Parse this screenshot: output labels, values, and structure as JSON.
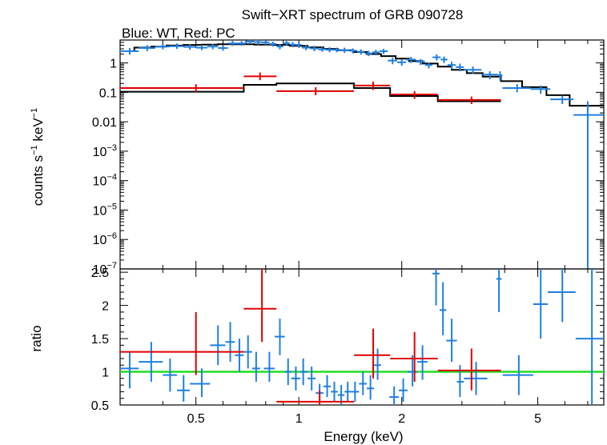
{
  "title": "Swift−XRT spectrum of GRB 090728",
  "subtitle": "Blue: WT, Red: PC",
  "colors": {
    "wt": "#1f7fe0",
    "pc": "#e00000",
    "model": "#000000",
    "unity": "#22dd22"
  },
  "chart_data": [
    {
      "type": "scatter",
      "panel": "spectrum",
      "ylabel_main": "counts s",
      "ylabel_sup1": "−1",
      "ylabel_mid": " keV",
      "ylabel_sup2": "−1",
      "xscale": "log",
      "yscale": "log",
      "xlim": [
        0.3,
        7.8
      ],
      "ylim": [
        1e-07,
        6
      ],
      "yticks": [
        {
          "v": 1,
          "b": "1",
          "e": ""
        },
        {
          "v": 0.1,
          "b": "0.1",
          "e": ""
        },
        {
          "v": 0.01,
          "b": "0.01",
          "e": ""
        },
        {
          "v": 0.001,
          "b": "10",
          "e": "−3"
        },
        {
          "v": 0.0001,
          "b": "10",
          "e": "−4"
        },
        {
          "v": 1e-05,
          "b": "10",
          "e": "−5"
        },
        {
          "v": 1e-06,
          "b": "10",
          "e": "−6"
        },
        {
          "v": 1e-07,
          "b": "10",
          "e": "−7"
        }
      ],
      "series": [
        {
          "key": "wt",
          "points": [
            [
              0.32,
              0.3,
              0.34,
              2.5,
              1.9,
              3.2
            ],
            [
              0.36,
              0.34,
              0.38,
              3.2,
              2.5,
              4.0
            ],
            [
              0.4,
              0.38,
              0.42,
              3.6,
              2.9,
              4.5
            ],
            [
              0.44,
              0.42,
              0.46,
              3.7,
              3.0,
              4.6
            ],
            [
              0.48,
              0.46,
              0.5,
              3.5,
              2.8,
              4.3
            ],
            [
              0.52,
              0.5,
              0.54,
              3.3,
              2.7,
              4.1
            ],
            [
              0.56,
              0.54,
              0.58,
              3.6,
              2.9,
              4.4
            ],
            [
              0.6,
              0.58,
              0.62,
              3.2,
              2.6,
              4.0
            ],
            [
              0.64,
              0.62,
              0.66,
              4.6,
              3.8,
              5.6
            ],
            [
              0.68,
              0.66,
              0.7,
              4.6,
              3.8,
              5.5
            ],
            [
              0.72,
              0.7,
              0.74,
              5.3,
              4.4,
              6.3
            ],
            [
              0.76,
              0.74,
              0.78,
              5.1,
              4.2,
              6.1
            ],
            [
              0.8,
              0.78,
              0.82,
              5.0,
              4.1,
              5.9
            ],
            [
              0.84,
              0.82,
              0.86,
              4.4,
              3.6,
              5.3
            ],
            [
              0.88,
              0.86,
              0.9,
              3.6,
              2.9,
              4.4
            ],
            [
              0.92,
              0.9,
              0.94,
              4.7,
              3.9,
              5.6
            ],
            [
              0.96,
              0.94,
              0.98,
              4.2,
              3.4,
              5.1
            ],
            [
              1.0,
              0.98,
              1.02,
              4.1,
              3.4,
              5.0
            ],
            [
              1.05,
              1.02,
              1.08,
              3.3,
              2.7,
              4.0
            ],
            [
              1.11,
              1.08,
              1.14,
              3.1,
              2.5,
              3.8
            ],
            [
              1.17,
              1.14,
              1.2,
              2.9,
              2.4,
              3.5
            ],
            [
              1.23,
              1.2,
              1.26,
              2.8,
              2.3,
              3.4
            ],
            [
              1.29,
              1.26,
              1.32,
              2.8,
              2.3,
              3.3
            ],
            [
              1.36,
              1.32,
              1.4,
              2.7,
              2.2,
              3.3
            ],
            [
              1.44,
              1.4,
              1.48,
              2.6,
              2.1,
              3.1
            ],
            [
              1.52,
              1.48,
              1.56,
              2.4,
              1.9,
              2.9
            ],
            [
              1.6,
              1.56,
              1.64,
              2.1,
              1.7,
              2.6
            ],
            [
              1.68,
              1.64,
              1.72,
              2.3,
              1.8,
              2.8
            ],
            [
              1.77,
              1.72,
              1.82,
              2.5,
              2.0,
              3.0
            ],
            [
              1.88,
              1.82,
              1.94,
              1.2,
              0.9,
              1.5
            ],
            [
              2.0,
              1.94,
              2.06,
              1.05,
              0.8,
              1.3
            ],
            [
              2.13,
              2.06,
              2.2,
              1.3,
              1.0,
              1.6
            ],
            [
              2.27,
              2.2,
              2.34,
              1.1,
              0.85,
              1.35
            ],
            [
              2.4,
              2.34,
              2.46,
              0.85,
              0.65,
              1.05
            ],
            [
              2.53,
              2.46,
              2.6,
              1.55,
              1.2,
              1.95
            ],
            [
              2.66,
              2.6,
              2.72,
              1.3,
              1.0,
              1.65
            ],
            [
              2.8,
              2.72,
              2.88,
              0.85,
              0.62,
              1.1
            ],
            [
              2.96,
              2.88,
              3.04,
              0.72,
              0.52,
              0.95
            ],
            [
              3.23,
              3.04,
              3.42,
              0.58,
              0.42,
              0.75
            ],
            [
              3.62,
              3.42,
              3.82,
              0.4,
              0.28,
              0.52
            ],
            [
              3.88,
              3.82,
              3.94,
              0.38,
              0.25,
              0.52
            ],
            [
              4.35,
              3.94,
              4.76,
              0.14,
              0.1,
              0.19
            ],
            [
              5.1,
              4.76,
              5.44,
              0.13,
              0.09,
              0.17
            ],
            [
              5.9,
              5.44,
              6.36,
              0.058,
              0.04,
              0.078
            ],
            [
              7.0,
              6.36,
              7.8,
              0.017,
              1e-07,
              0.05
            ]
          ]
        },
        {
          "key": "pc",
          "points": [
            [
              0.5,
              0.3,
              0.69,
              0.14,
              0.1,
              0.19
            ],
            [
              0.77,
              0.69,
              0.86,
              0.35,
              0.26,
              0.47
            ],
            [
              1.12,
              0.86,
              1.45,
              0.11,
              0.08,
              0.15
            ],
            [
              1.65,
              1.45,
              1.85,
              0.17,
              0.12,
              0.23
            ],
            [
              2.18,
              1.85,
              2.55,
              0.085,
              0.06,
              0.11
            ],
            [
              3.2,
              2.55,
              3.9,
              0.055,
              0.04,
              0.072
            ]
          ]
        }
      ],
      "model_steps": [
        {
          "key": "wt",
          "edges": [
            0.3,
            0.33,
            0.37,
            0.41,
            0.46,
            0.52,
            0.58,
            0.66,
            0.74,
            0.84,
            0.94,
            1.06,
            1.18,
            1.3,
            1.44,
            1.58,
            1.74,
            1.92,
            2.1,
            2.3,
            2.55,
            2.8,
            3.1,
            3.45,
            3.9,
            4.5,
            5.3,
            6.2,
            7.8
          ],
          "values": [
            2.5,
            3.3,
            3.6,
            3.9,
            4.1,
            4.2,
            4.3,
            4.3,
            4.2,
            4.1,
            3.8,
            3.4,
            3.0,
            2.7,
            2.35,
            2.0,
            1.7,
            1.4,
            1.15,
            0.95,
            0.75,
            0.58,
            0.45,
            0.34,
            0.24,
            0.15,
            0.08,
            0.035
          ]
        },
        {
          "key": "pc",
          "edges": [
            0.3,
            0.69,
            0.86,
            1.45,
            1.85,
            2.55,
            3.9
          ],
          "values": [
            0.105,
            0.18,
            0.2,
            0.14,
            0.075,
            0.05
          ]
        }
      ]
    },
    {
      "type": "scatter",
      "panel": "ratio",
      "xlabel": "Energy (keV)",
      "ylabel": "ratio",
      "xscale": "log",
      "xlim": [
        0.3,
        7.8
      ],
      "ylim": [
        0.5,
        2.55
      ],
      "xticks": [
        {
          "v": 0.5,
          "label": "0.5"
        },
        {
          "v": 1,
          "label": "1"
        },
        {
          "v": 2,
          "label": "2"
        },
        {
          "v": 5,
          "label": "5"
        }
      ],
      "yticks": [
        {
          "v": 0.5,
          "label": "0.5"
        },
        {
          "v": 1,
          "label": "1"
        },
        {
          "v": 1.5,
          "label": "1.5"
        },
        {
          "v": 2,
          "label": "2"
        },
        {
          "v": 2.5,
          "label": "2.5"
        }
      ],
      "unity_line": 1,
      "series": [
        {
          "key": "wt",
          "points": [
            [
              0.32,
              0.3,
              0.34,
              1.05,
              0.75,
              1.3
            ],
            [
              0.37,
              0.34,
              0.4,
              1.15,
              0.85,
              1.45
            ],
            [
              0.42,
              0.4,
              0.44,
              0.95,
              0.7,
              1.2
            ],
            [
              0.46,
              0.44,
              0.48,
              0.72,
              0.55,
              0.95
            ],
            [
              0.52,
              0.48,
              0.55,
              0.82,
              0.62,
              1.05
            ],
            [
              0.58,
              0.55,
              0.61,
              1.4,
              1.1,
              1.7
            ],
            [
              0.63,
              0.61,
              0.65,
              1.45,
              1.15,
              1.75
            ],
            [
              0.67,
              0.65,
              0.69,
              1.25,
              1.0,
              1.5
            ],
            [
              0.71,
              0.69,
              0.73,
              1.3,
              1.05,
              1.55
            ],
            [
              0.75,
              0.73,
              0.77,
              1.05,
              0.85,
              1.3
            ],
            [
              0.82,
              0.79,
              0.85,
              1.05,
              0.85,
              1.3
            ],
            [
              0.88,
              0.85,
              0.91,
              1.53,
              1.25,
              1.8
            ],
            [
              0.93,
              0.91,
              0.95,
              1.0,
              0.8,
              1.2
            ],
            [
              0.98,
              0.95,
              1.01,
              0.9,
              0.72,
              1.08
            ],
            [
              1.03,
              1.01,
              1.06,
              1.0,
              0.8,
              1.2
            ],
            [
              1.09,
              1.06,
              1.12,
              0.9,
              0.72,
              1.08
            ],
            [
              1.15,
              1.12,
              1.18,
              0.68,
              0.55,
              0.82
            ],
            [
              1.21,
              1.18,
              1.24,
              0.78,
              0.62,
              0.95
            ],
            [
              1.27,
              1.24,
              1.3,
              0.7,
              0.55,
              0.85
            ],
            [
              1.33,
              1.3,
              1.36,
              0.65,
              0.5,
              0.8
            ],
            [
              1.39,
              1.36,
              1.42,
              0.7,
              0.55,
              0.85
            ],
            [
              1.46,
              1.42,
              1.5,
              0.7,
              0.55,
              0.85
            ],
            [
              1.54,
              1.5,
              1.58,
              0.82,
              0.65,
              1.0
            ],
            [
              1.62,
              1.58,
              1.66,
              0.75,
              0.58,
              0.95
            ],
            [
              1.7,
              1.66,
              1.74,
              1.1,
              0.88,
              1.35
            ],
            [
              1.9,
              1.84,
              1.96,
              0.62,
              0.48,
              0.78
            ],
            [
              2.02,
              1.96,
              2.08,
              0.72,
              0.55,
              0.9
            ],
            [
              2.15,
              2.08,
              2.22,
              1.0,
              0.78,
              1.25
            ],
            [
              2.3,
              2.22,
              2.38,
              1.15,
              0.88,
              1.4
            ],
            [
              2.52,
              2.46,
              2.58,
              2.48,
              2.0,
              2.9
            ],
            [
              2.64,
              2.58,
              2.7,
              1.93,
              1.55,
              2.35
            ],
            [
              2.8,
              2.7,
              2.9,
              1.47,
              1.15,
              1.8
            ],
            [
              2.96,
              2.9,
              3.04,
              0.85,
              0.62,
              1.1
            ],
            [
              3.3,
              3.04,
              3.56,
              0.9,
              0.65,
              1.15
            ],
            [
              3.85,
              3.78,
              3.92,
              2.4,
              1.9,
              2.9
            ],
            [
              4.4,
              3.95,
              4.85,
              0.95,
              0.65,
              1.25
            ],
            [
              5.1,
              4.85,
              5.35,
              2.02,
              1.5,
              2.55
            ],
            [
              5.9,
              5.35,
              6.45,
              2.2,
              1.75,
              2.7
            ],
            [
              7.2,
              6.45,
              7.8,
              1.5,
              0.5,
              2.55
            ]
          ]
        },
        {
          "key": "pc",
          "points": [
            [
              0.5,
              0.3,
              0.69,
              1.3,
              0.95,
              1.9
            ],
            [
              0.78,
              0.69,
              0.86,
              1.95,
              1.45,
              2.55
            ],
            [
              1.15,
              0.86,
              1.45,
              0.55,
              0.42,
              0.72
            ],
            [
              1.65,
              1.45,
              1.85,
              1.25,
              0.9,
              1.65
            ],
            [
              2.18,
              1.85,
              2.55,
              1.2,
              0.85,
              1.6
            ],
            [
              3.2,
              2.55,
              3.9,
              1.02,
              0.72,
              1.35
            ]
          ]
        }
      ]
    }
  ]
}
